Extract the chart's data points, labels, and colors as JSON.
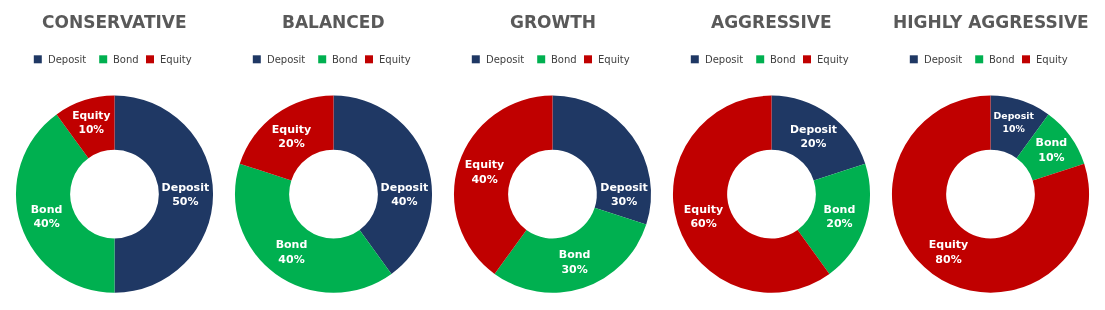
{
  "chart_data": [
    {
      "type": "donut",
      "title": "CONSERVATIVE",
      "categories": [
        "Deposit",
        "Bond",
        "Equity"
      ],
      "values": [
        50,
        40,
        10
      ],
      "value_labels": [
        "50%",
        "40%",
        "10%"
      ],
      "colors": [
        "#1f3864",
        "#00b050",
        "#c00000"
      ],
      "legend": "top"
    },
    {
      "type": "donut",
      "title": "BALANCED",
      "categories": [
        "Deposit",
        "Bond",
        "Equity"
      ],
      "values": [
        40,
        40,
        20
      ],
      "value_labels": [
        "40%",
        "40%",
        "20%"
      ],
      "colors": [
        "#1f3864",
        "#00b050",
        "#c00000"
      ],
      "legend": "top"
    },
    {
      "type": "donut",
      "title": "GROWTH",
      "categories": [
        "Deposit",
        "Bond",
        "Equity"
      ],
      "values": [
        30,
        30,
        40
      ],
      "value_labels": [
        "30%",
        "30%",
        "40%"
      ],
      "colors": [
        "#1f3864",
        "#00b050",
        "#c00000"
      ],
      "legend": "top"
    },
    {
      "type": "donut",
      "title": "AGGRESSIVE",
      "categories": [
        "Deposit",
        "Bond",
        "Equity"
      ],
      "values": [
        20,
        20,
        60
      ],
      "value_labels": [
        "20%",
        "20%",
        "60%"
      ],
      "colors": [
        "#1f3864",
        "#00b050",
        "#c00000"
      ],
      "legend": "top"
    },
    {
      "type": "donut",
      "title": "HIGHLY AGGRESSIVE",
      "categories": [
        "Deposit",
        "Bond",
        "Equity"
      ],
      "values": [
        10,
        10,
        80
      ],
      "value_labels": [
        "10%",
        "10%",
        "80%"
      ],
      "colors": [
        "#1f3864",
        "#00b050",
        "#c00000"
      ],
      "legend": "top"
    }
  ]
}
